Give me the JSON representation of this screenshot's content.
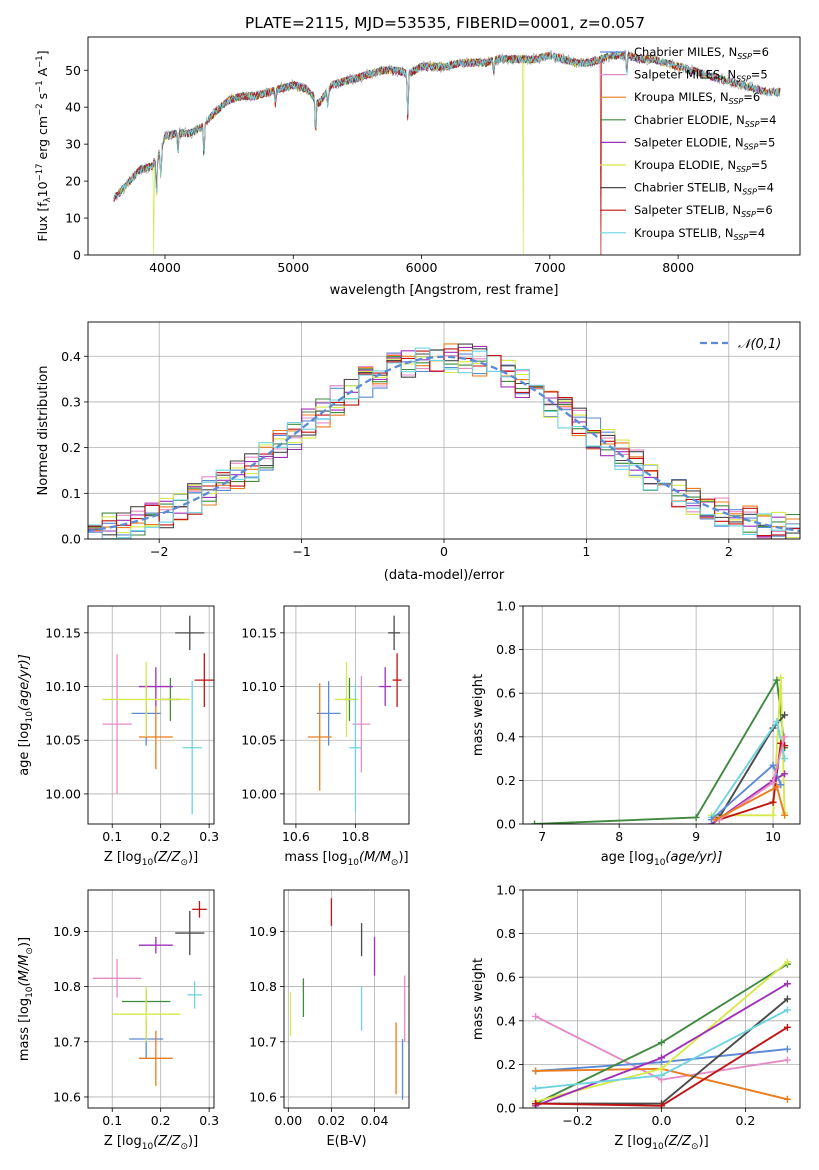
{
  "figure": {
    "title": "PLATE=2115, MJD=53535, FIBERID=0001, z=0.057"
  },
  "colors": {
    "chabrier_miles": "#5b8ad6",
    "salpeter_miles": "#e58cc6",
    "kroupa_miles": "#ea7c1c",
    "chabrier_elodie": "#3f8a3f",
    "salpeter_elodie": "#a02fb8",
    "kroupa_elodie": "#d7e84a",
    "chabrier_stelib": "#4a4a4a",
    "salpeter_stelib": "#c01414",
    "kroupa_stelib": "#6fd3e0",
    "data": "#a0a0a0"
  },
  "chart_data": [
    {
      "id": "spectrum",
      "type": "line",
      "xlabel": "wavelength [Angstrom, rest frame]",
      "ylabel_parts": [
        "Flux [f",
        "λ",
        "10",
        "−17",
        " erg cm",
        "−2",
        " s",
        "−1",
        " A",
        "−1",
        "]"
      ],
      "xlim": [
        3400,
        8950
      ],
      "ylim": [
        0,
        59
      ],
      "xticks": [
        4000,
        5000,
        6000,
        7000,
        8000
      ],
      "yticks": [
        0,
        10,
        20,
        30,
        40,
        50
      ],
      "legend_position": "right",
      "legend": [
        {
          "key": "chabrier_miles",
          "label": "Chabrier MILES, N",
          "sub": "SSP",
          "tail": "=6"
        },
        {
          "key": "salpeter_miles",
          "label": "Salpeter MILES, N",
          "sub": "SSP",
          "tail": "=5"
        },
        {
          "key": "kroupa_miles",
          "label": "Kroupa MILES, N",
          "sub": "SSP",
          "tail": "=6"
        },
        {
          "key": "chabrier_elodie",
          "label": "Chabrier ELODIE, N",
          "sub": "SSP",
          "tail": "=4"
        },
        {
          "key": "salpeter_elodie",
          "label": "Salpeter ELODIE, N",
          "sub": "SSP",
          "tail": "=5"
        },
        {
          "key": "kroupa_elodie",
          "label": "Kroupa ELODIE, N",
          "sub": "SSP",
          "tail": "=5"
        },
        {
          "key": "chabrier_stelib",
          "label": "Chabrier STELIB, N",
          "sub": "SSP",
          "tail": "=4"
        },
        {
          "key": "salpeter_stelib",
          "label": "Salpeter STELIB, N",
          "sub": "SSP",
          "tail": "=6"
        },
        {
          "key": "kroupa_stelib",
          "label": "Kroupa STELIB, N",
          "sub": "SSP",
          "tail": "=4"
        }
      ],
      "continuum": {
        "x": [
          3600,
          3700,
          3800,
          3900,
          3950,
          4000,
          4100,
          4200,
          4300,
          4400,
          4500,
          4600,
          4700,
          4800,
          4900,
          5000,
          5100,
          5200,
          5300,
          5400,
          5500,
          5600,
          5700,
          5800,
          5900,
          6000,
          6100,
          6200,
          6300,
          6400,
          6500,
          6600,
          6700,
          6800,
          6900,
          7000,
          7100,
          7200,
          7300,
          7400,
          7500,
          7600,
          7700,
          7800,
          7900,
          8000,
          8100,
          8200,
          8300,
          8400,
          8500,
          8600,
          8700
        ],
        "y": [
          15,
          19,
          23,
          24,
          27,
          32,
          33,
          33,
          35,
          39,
          42,
          43,
          43,
          44,
          45,
          46,
          45,
          41,
          46,
          47,
          48,
          49,
          50,
          50,
          49,
          51,
          51,
          51,
          52,
          52,
          52,
          53,
          53,
          53,
          53,
          54,
          53,
          52,
          52,
          53,
          54,
          54,
          53,
          53,
          52,
          51,
          50,
          49,
          48,
          47,
          46,
          45,
          44
        ]
      },
      "absorption_lines": [
        {
          "x": 3934,
          "depth": 10
        },
        {
          "x": 3968,
          "depth": 8
        },
        {
          "x": 4102,
          "depth": 5
        },
        {
          "x": 4304,
          "depth": 8
        },
        {
          "x": 4861,
          "depth": 4
        },
        {
          "x": 5175,
          "depth": 9
        },
        {
          "x": 5270,
          "depth": 4
        },
        {
          "x": 5893,
          "depth": 12
        },
        {
          "x": 6563,
          "depth": 3
        },
        {
          "x": 7600,
          "depth": 5
        }
      ],
      "dropouts": [
        {
          "key": "kroupa_elodie",
          "x": 3910
        },
        {
          "key": "kroupa_elodie",
          "x": 6790
        },
        {
          "key": "salpeter_stelib",
          "x": 7400
        }
      ]
    },
    {
      "id": "residuals",
      "type": "histogram",
      "xlabel": "(data-model)/error",
      "ylabel": "Normed distribution",
      "xlim": [
        -2.5,
        2.5
      ],
      "ylim": [
        0,
        0.475
      ],
      "xticks": [
        -2,
        -1,
        0,
        1,
        2
      ],
      "yticks": [
        0.0,
        0.1,
        0.2,
        0.3,
        0.4
      ],
      "grid": true,
      "bin_width": 0.1,
      "reference": {
        "label": "𝒩(0,1)",
        "color": "#5b8ad6",
        "legend_position": "top-right"
      }
    },
    {
      "id": "age_vs_Z",
      "type": "errorbar",
      "xlabel": "Z [log",
      "xlabel_sub": "10",
      "xlabel_tail": "(Z/Z",
      "xlabel_sun": "⊙",
      "xlabel_end": ")]",
      "ylabel": "age  [log",
      "ylabel_sub": "10",
      "ylabel_tail": "(age/yr)]",
      "xlim": [
        0.05,
        0.31
      ],
      "ylim": [
        9.972,
        10.175
      ],
      "xticks": [
        0.1,
        0.2,
        0.3
      ],
      "yticks": [
        10.0,
        10.05,
        10.1,
        10.15
      ],
      "points": [
        {
          "key": "chabrier_miles",
          "x": 0.17,
          "y": 10.075,
          "xerr": 0.03,
          "yerr": 0.03
        },
        {
          "key": "salpeter_miles",
          "x": 0.11,
          "y": 10.065,
          "xerr": 0.03,
          "yerr": 0.065
        },
        {
          "key": "kroupa_miles",
          "x": 0.19,
          "y": 10.053,
          "xerr": 0.035,
          "yerr": 0.03
        },
        {
          "key": "chabrier_elodie",
          "x": 0.22,
          "y": 10.088,
          "xerr": 0.02,
          "yerr": 0.02
        },
        {
          "key": "salpeter_elodie",
          "x": 0.19,
          "y": 10.1,
          "xerr": 0.035,
          "yerr": 0.018
        },
        {
          "key": "kroupa_elodie",
          "x": 0.17,
          "y": 10.088,
          "xerr": 0.09,
          "yerr": 0.035
        },
        {
          "key": "chabrier_stelib",
          "x": 0.26,
          "y": 10.15,
          "xerr": 0.03,
          "yerr": 0.016
        },
        {
          "key": "salpeter_stelib",
          "x": 0.29,
          "y": 10.106,
          "xerr": 0.02,
          "yerr": 0.025
        },
        {
          "key": "kroupa_stelib",
          "x": 0.265,
          "y": 10.043,
          "xerr": 0.02,
          "yerr": 0.062
        }
      ]
    },
    {
      "id": "age_vs_mass",
      "type": "errorbar",
      "xlabel": "mass [log",
      "xlabel_sub": "10",
      "xlabel_tail": "(M/M",
      "xlabel_sun": "⊙",
      "xlabel_end": ")]",
      "xlim": [
        10.56,
        10.98
      ],
      "ylim": [
        9.972,
        10.175
      ],
      "xticks": [
        10.6,
        10.8
      ],
      "yticks": [
        10.0,
        10.05,
        10.1,
        10.15
      ],
      "points": [
        {
          "key": "chabrier_miles",
          "x": 10.71,
          "y": 10.075,
          "xerr": 0.04,
          "yerr": 0.03
        },
        {
          "key": "salpeter_miles",
          "x": 10.82,
          "y": 10.065,
          "xerr": 0.03,
          "yerr": 0.045
        },
        {
          "key": "kroupa_miles",
          "x": 10.68,
          "y": 10.053,
          "xerr": 0.04,
          "yerr": 0.05
        },
        {
          "key": "chabrier_elodie",
          "x": 10.78,
          "y": 10.088,
          "xerr": 0.02,
          "yerr": 0.02
        },
        {
          "key": "salpeter_elodie",
          "x": 10.9,
          "y": 10.1,
          "xerr": 0.02,
          "yerr": 0.018
        },
        {
          "key": "kroupa_elodie",
          "x": 10.77,
          "y": 10.088,
          "xerr": 0.04,
          "yerr": 0.035
        },
        {
          "key": "chabrier_stelib",
          "x": 10.93,
          "y": 10.15,
          "xerr": 0.02,
          "yerr": 0.016
        },
        {
          "key": "salpeter_stelib",
          "x": 10.94,
          "y": 10.106,
          "xerr": 0.015,
          "yerr": 0.025
        },
        {
          "key": "kroupa_stelib",
          "x": 10.8,
          "y": 10.043,
          "xerr": 0.02,
          "yerr": 0.06
        }
      ]
    },
    {
      "id": "age_weights",
      "type": "line",
      "xlabel": "age  [log",
      "xlabel_sub": "10",
      "xlabel_tail": "(age/yr)]",
      "ylabel": "mass weight",
      "xlim": [
        6.75,
        10.35
      ],
      "ylim": [
        0,
        1
      ],
      "xticks": [
        7,
        8,
        9,
        10
      ],
      "yticks": [
        0.0,
        0.2,
        0.4,
        0.6,
        0.8,
        1.0
      ],
      "grid": true,
      "series": [
        {
          "key": "chabrier_elodie",
          "x": [
            6.9,
            9.0,
            10.05,
            10.15
          ],
          "y": [
            0.0,
            0.03,
            0.66,
            0.35
          ]
        },
        {
          "key": "kroupa_elodie",
          "x": [
            9.2,
            10.0,
            10.1,
            10.15
          ],
          "y": [
            0.04,
            0.04,
            0.67,
            0.05
          ]
        },
        {
          "key": "chabrier_stelib",
          "x": [
            9.3,
            10.0,
            10.15
          ],
          "y": [
            0.03,
            0.44,
            0.5
          ]
        },
        {
          "key": "kroupa_stelib",
          "x": [
            9.2,
            10.05,
            10.15
          ],
          "y": [
            0.03,
            0.47,
            0.3
          ]
        },
        {
          "key": "salpeter_stelib",
          "x": [
            9.3,
            10.0,
            10.1,
            10.15
          ],
          "y": [
            0.02,
            0.1,
            0.37,
            0.36
          ]
        },
        {
          "key": "salpeter_elodie",
          "x": [
            9.2,
            10.0,
            10.15
          ],
          "y": [
            0.0,
            0.2,
            0.23
          ]
        },
        {
          "key": "chabrier_miles",
          "x": [
            9.2,
            10.0,
            10.1
          ],
          "y": [
            0.02,
            0.27,
            0.18
          ]
        },
        {
          "key": "salpeter_miles",
          "x": [
            9.3,
            10.0,
            10.15
          ],
          "y": [
            0.02,
            0.19,
            0.4
          ]
        },
        {
          "key": "kroupa_miles",
          "x": [
            9.25,
            10.05,
            10.15
          ],
          "y": [
            0.02,
            0.17,
            0.04
          ]
        }
      ]
    },
    {
      "id": "mass_vs_Z",
      "type": "errorbar",
      "xlabel": "Z [log",
      "xlabel_sub": "10",
      "xlabel_tail": "(Z/Z",
      "xlabel_sun": "⊙",
      "xlabel_end": ")]",
      "ylabel": "mass [log",
      "ylabel_sub": "10",
      "ylabel_tail": "(M/M",
      "ylabel_sun": "⊙",
      "ylabel_end": ")]",
      "xlim": [
        0.05,
        0.31
      ],
      "ylim": [
        10.58,
        10.975
      ],
      "xticks": [
        0.1,
        0.2,
        0.3
      ],
      "yticks": [
        10.6,
        10.7,
        10.8,
        10.9
      ],
      "points": [
        {
          "key": "chabrier_miles",
          "x": 0.17,
          "y": 10.705,
          "xerr": 0.035,
          "yerr": 0.035
        },
        {
          "key": "salpeter_miles",
          "x": 0.11,
          "y": 10.815,
          "xerr": 0.05,
          "yerr": 0.035
        },
        {
          "key": "kroupa_miles",
          "x": 0.19,
          "y": 10.67,
          "xerr": 0.035,
          "yerr": 0.05
        },
        {
          "key": "chabrier_elodie",
          "x": 0.17,
          "y": 10.773,
          "xerr": 0.05,
          "yerr": 0.02
        },
        {
          "key": "salpeter_elodie",
          "x": 0.19,
          "y": 10.875,
          "xerr": 0.035,
          "yerr": 0.015
        },
        {
          "key": "kroupa_elodie",
          "x": 0.17,
          "y": 10.75,
          "xerr": 0.07,
          "yerr": 0.05
        },
        {
          "key": "chabrier_stelib",
          "x": 0.26,
          "y": 10.897,
          "xerr": 0.03,
          "yerr": 0.04
        },
        {
          "key": "salpeter_stelib",
          "x": 0.28,
          "y": 10.94,
          "xerr": 0.015,
          "yerr": 0.015
        },
        {
          "key": "kroupa_stelib",
          "x": 0.27,
          "y": 10.785,
          "xerr": 0.015,
          "yerr": 0.025
        }
      ]
    },
    {
      "id": "mass_vs_ebv",
      "type": "errorbar",
      "xlabel": "E(B-V)",
      "xlim": [
        -0.002,
        0.056
      ],
      "ylim": [
        10.58,
        10.975
      ],
      "xticks": [
        0.0,
        0.02,
        0.04
      ],
      "yticks": [
        10.6,
        10.7,
        10.8,
        10.9
      ],
      "points": [
        {
          "key": "chabrier_miles",
          "x": 0.053,
          "y": 10.65,
          "xerr": 0,
          "yerr": 0.055
        },
        {
          "key": "salpeter_miles",
          "x": 0.054,
          "y": 10.76,
          "xerr": 0,
          "yerr": 0.06
        },
        {
          "key": "kroupa_miles",
          "x": 0.05,
          "y": 10.67,
          "xerr": 0,
          "yerr": 0.065
        },
        {
          "key": "chabrier_elodie",
          "x": 0.007,
          "y": 10.78,
          "xerr": 0,
          "yerr": 0.035
        },
        {
          "key": "salpeter_elodie",
          "x": 0.04,
          "y": 10.855,
          "xerr": 0,
          "yerr": 0.035
        },
        {
          "key": "kroupa_elodie",
          "x": 0.001,
          "y": 10.75,
          "xerr": 0,
          "yerr": 0.04
        },
        {
          "key": "chabrier_stelib",
          "x": 0.034,
          "y": 10.885,
          "xerr": 0,
          "yerr": 0.03
        },
        {
          "key": "salpeter_stelib",
          "x": 0.02,
          "y": 10.935,
          "xerr": 0,
          "yerr": 0.025
        },
        {
          "key": "kroupa_stelib",
          "x": 0.034,
          "y": 10.76,
          "xerr": 0,
          "yerr": 0.04
        }
      ]
    },
    {
      "id": "Z_weights",
      "type": "line",
      "xlabel": "Z [log",
      "xlabel_sub": "10",
      "xlabel_tail": "(Z/Z",
      "xlabel_sun": "⊙",
      "xlabel_end": ")]",
      "ylabel": "mass weight",
      "xlim": [
        -0.33,
        0.33
      ],
      "ylim": [
        0,
        1
      ],
      "xticks": [
        -0.2,
        0.0,
        0.2
      ],
      "yticks": [
        0.0,
        0.2,
        0.4,
        0.6,
        0.8,
        1.0
      ],
      "grid": true,
      "series": [
        {
          "key": "salpeter_miles",
          "x": [
            -0.3,
            0.0,
            0.3
          ],
          "y": [
            0.42,
            0.13,
            0.22
          ]
        },
        {
          "key": "chabrier_miles",
          "x": [
            -0.3,
            0.0,
            0.3
          ],
          "y": [
            0.17,
            0.21,
            0.27
          ]
        },
        {
          "key": "kroupa_miles",
          "x": [
            -0.3,
            0.0,
            0.3
          ],
          "y": [
            0.17,
            0.18,
            0.04
          ]
        },
        {
          "key": "chabrier_elodie",
          "x": [
            -0.3,
            0.0,
            0.3
          ],
          "y": [
            0.02,
            0.3,
            0.66
          ]
        },
        {
          "key": "kroupa_elodie",
          "x": [
            -0.3,
            0.0,
            0.3
          ],
          "y": [
            0.03,
            0.18,
            0.67
          ]
        },
        {
          "key": "salpeter_elodie",
          "x": [
            -0.3,
            0.0,
            0.3
          ],
          "y": [
            0.01,
            0.23,
            0.57
          ]
        },
        {
          "key": "chabrier_stelib",
          "x": [
            -0.3,
            0.0,
            0.3
          ],
          "y": [
            0.02,
            0.02,
            0.5
          ]
        },
        {
          "key": "kroupa_stelib",
          "x": [
            -0.3,
            0.0,
            0.3
          ],
          "y": [
            0.09,
            0.15,
            0.45
          ]
        },
        {
          "key": "salpeter_stelib",
          "x": [
            -0.3,
            0.0,
            0.3
          ],
          "y": [
            0.02,
            0.01,
            0.37
          ]
        }
      ]
    }
  ]
}
